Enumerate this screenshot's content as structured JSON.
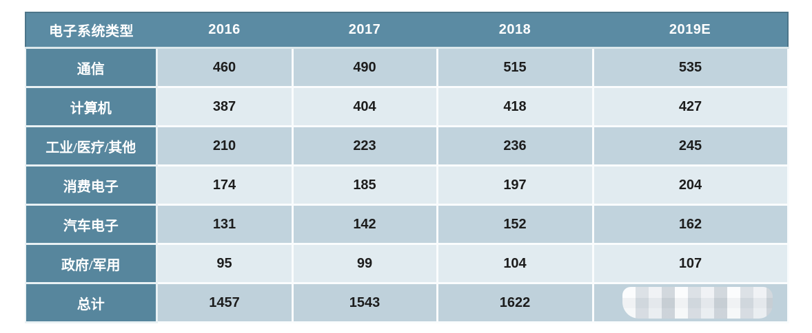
{
  "colors": {
    "header_bg": "#5b8ba3",
    "header_border": "#4c7589",
    "row_label_bg": "#57869d",
    "row_odd_bg": "#c1d3dd",
    "row_even_bg": "#e1ebf0",
    "total_row_bg": "#bfd1db",
    "separator": "#fafcfd",
    "header_text": "#ffffff",
    "data_text": "#1c1c1c"
  },
  "table": {
    "header": [
      "电子系统类型",
      "2016",
      "2017",
      "2018",
      "2019E"
    ],
    "rows": [
      {
        "label": "通信",
        "values": [
          "460",
          "490",
          "515",
          "535"
        ]
      },
      {
        "label": "计算机",
        "values": [
          "387",
          "404",
          "418",
          "427"
        ]
      },
      {
        "label": "工业/医疗/其他",
        "values": [
          "210",
          "223",
          "236",
          "245"
        ]
      },
      {
        "label": "消费电子",
        "values": [
          "174",
          "185",
          "197",
          "204"
        ]
      },
      {
        "label": "汽车电子",
        "values": [
          "131",
          "142",
          "152",
          "162"
        ]
      },
      {
        "label": "政府/军用",
        "values": [
          "95",
          "99",
          "104",
          "107"
        ]
      },
      {
        "label": "总计",
        "values": [
          "1457",
          "1543",
          "1622",
          ""
        ],
        "watermarked_last_cell": true
      }
    ]
  },
  "chart_data": {
    "type": "table",
    "title": "",
    "row_label_header": "电子系统类型",
    "categories": [
      "2016",
      "2017",
      "2018",
      "2019E"
    ],
    "series": [
      {
        "name": "通信",
        "values": [
          460,
          490,
          515,
          535
        ]
      },
      {
        "name": "计算机",
        "values": [
          387,
          404,
          418,
          427
        ]
      },
      {
        "name": "工业/医疗/其他",
        "values": [
          210,
          223,
          236,
          245
        ]
      },
      {
        "name": "消费电子",
        "values": [
          174,
          185,
          197,
          204
        ]
      },
      {
        "name": "汽车电子",
        "values": [
          131,
          142,
          152,
          162
        ]
      },
      {
        "name": "政府/军用",
        "values": [
          95,
          99,
          104,
          107
        ]
      },
      {
        "name": "总计",
        "values": [
          1457,
          1543,
          1622,
          null
        ]
      }
    ],
    "notes": "last value of 总计 row is obscured by a pixelated watermark"
  }
}
